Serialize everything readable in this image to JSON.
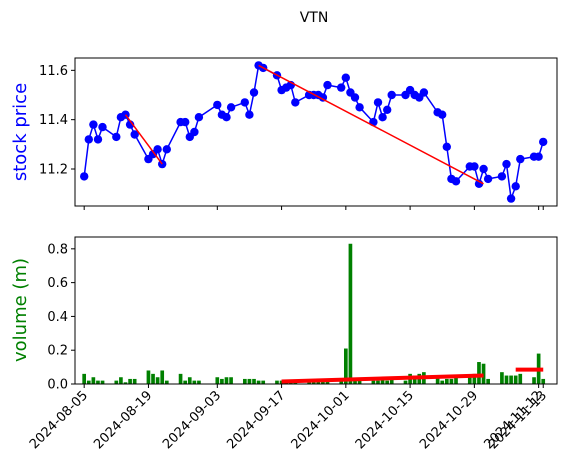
{
  "chart_data": [
    {
      "type": "line",
      "title": "VTN",
      "ylabel": "stock price",
      "ylabel_color": "#0000ff",
      "ylim": [
        11.05,
        11.65
      ],
      "yticks": [
        11.2,
        11.4,
        11.6
      ],
      "ytick_labels": [
        "11.2",
        "11.4",
        "11.6"
      ],
      "xlim": [
        "2024-08-03",
        "2024-11-16"
      ],
      "series": [
        {
          "color": "#0000ff",
          "marker": "circle",
          "x": [
            "2024-08-05",
            "2024-08-06",
            "2024-08-07",
            "2024-08-08",
            "2024-08-09",
            "2024-08-12",
            "2024-08-13",
            "2024-08-14",
            "2024-08-15",
            "2024-08-16",
            "2024-08-19",
            "2024-08-20",
            "2024-08-21",
            "2024-08-22",
            "2024-08-23",
            "2024-08-26",
            "2024-08-27",
            "2024-08-28",
            "2024-08-29",
            "2024-08-30",
            "2024-09-03",
            "2024-09-04",
            "2024-09-05",
            "2024-09-06",
            "2024-09-09",
            "2024-09-10",
            "2024-09-11",
            "2024-09-12",
            "2024-09-13",
            "2024-09-16",
            "2024-09-17",
            "2024-09-18",
            "2024-09-19",
            "2024-09-20",
            "2024-09-23",
            "2024-09-24",
            "2024-09-25",
            "2024-09-26",
            "2024-09-27",
            "2024-09-30",
            "2024-10-01",
            "2024-10-02",
            "2024-10-03",
            "2024-10-04",
            "2024-10-07",
            "2024-10-08",
            "2024-10-09",
            "2024-10-10",
            "2024-10-11",
            "2024-10-14",
            "2024-10-15",
            "2024-10-16",
            "2024-10-17",
            "2024-10-18",
            "2024-10-21",
            "2024-10-22",
            "2024-10-23",
            "2024-10-24",
            "2024-10-25",
            "2024-10-28",
            "2024-10-29",
            "2024-10-30",
            "2024-10-31",
            "2024-11-01",
            "2024-11-04",
            "2024-11-05",
            "2024-11-06",
            "2024-11-07",
            "2024-11-08",
            "2024-11-11",
            "2024-11-12",
            "2024-11-13"
          ],
          "y": [
            11.17,
            11.32,
            11.38,
            11.32,
            11.37,
            11.33,
            11.41,
            11.42,
            11.38,
            11.34,
            11.24,
            11.26,
            11.28,
            11.22,
            11.28,
            11.39,
            11.39,
            11.33,
            11.35,
            11.41,
            11.46,
            11.42,
            11.41,
            11.45,
            11.47,
            11.42,
            11.51,
            11.62,
            11.61,
            11.58,
            11.52,
            11.53,
            11.54,
            11.47,
            11.5,
            11.5,
            11.5,
            11.49,
            11.54,
            11.53,
            11.57,
            11.51,
            11.49,
            11.45,
            11.39,
            11.47,
            11.41,
            11.44,
            11.5,
            11.5,
            11.52,
            11.5,
            11.49,
            11.51,
            11.43,
            11.42,
            11.29,
            11.16,
            11.15,
            11.21,
            11.21,
            11.14,
            11.2,
            11.16,
            11.17,
            11.22,
            11.08,
            11.13,
            11.24,
            11.25,
            11.25,
            11.31
          ]
        }
      ],
      "trend_lines": [
        {
          "color": "#ff0000",
          "x": [
            "2024-08-14",
            "2024-08-22"
          ],
          "y": [
            11.42,
            11.22
          ]
        },
        {
          "color": "#ff0000",
          "x": [
            "2024-09-12",
            "2024-10-31"
          ],
          "y": [
            11.62,
            11.14
          ]
        }
      ]
    },
    {
      "type": "bar",
      "ylabel": "volume (m)",
      "ylabel_color": "#008000",
      "ylim": [
        0,
        0.87
      ],
      "yticks": [
        0.0,
        0.2,
        0.4,
        0.6,
        0.8
      ],
      "ytick_labels": [
        "0.0",
        "0.2",
        "0.4",
        "0.6",
        "0.8"
      ],
      "xlim": [
        "2024-08-03",
        "2024-11-16"
      ],
      "xticks": [
        "2024-08-05",
        "2024-08-19",
        "2024-09-03",
        "2024-09-17",
        "2024-10-01",
        "2024-10-15",
        "2024-10-29",
        "2024-11-12",
        "2024-11-13"
      ],
      "xtick_labels": [
        "2024-08-05",
        "2024-08-19",
        "2024-09-03",
        "2024-09-17",
        "2024-10-01",
        "2024-10-15",
        "2024-10-29",
        "2024-11-12",
        "2024-11-13"
      ],
      "series": [
        {
          "color": "#008000",
          "x": [
            "2024-08-05",
            "2024-08-06",
            "2024-08-07",
            "2024-08-08",
            "2024-08-09",
            "2024-08-12",
            "2024-08-13",
            "2024-08-14",
            "2024-08-15",
            "2024-08-16",
            "2024-08-19",
            "2024-08-20",
            "2024-08-21",
            "2024-08-22",
            "2024-08-23",
            "2024-08-26",
            "2024-08-27",
            "2024-08-28",
            "2024-08-29",
            "2024-08-30",
            "2024-09-03",
            "2024-09-04",
            "2024-09-05",
            "2024-09-06",
            "2024-09-09",
            "2024-09-10",
            "2024-09-11",
            "2024-09-12",
            "2024-09-13",
            "2024-09-16",
            "2024-09-17",
            "2024-09-18",
            "2024-09-19",
            "2024-09-20",
            "2024-09-23",
            "2024-09-24",
            "2024-09-25",
            "2024-09-26",
            "2024-09-27",
            "2024-09-30",
            "2024-10-01",
            "2024-10-02",
            "2024-10-03",
            "2024-10-04",
            "2024-10-07",
            "2024-10-08",
            "2024-10-09",
            "2024-10-10",
            "2024-10-11",
            "2024-10-14",
            "2024-10-15",
            "2024-10-16",
            "2024-10-17",
            "2024-10-18",
            "2024-10-21",
            "2024-10-22",
            "2024-10-23",
            "2024-10-24",
            "2024-10-25",
            "2024-10-28",
            "2024-10-29",
            "2024-10-30",
            "2024-10-31",
            "2024-11-01",
            "2024-11-04",
            "2024-11-05",
            "2024-11-06",
            "2024-11-07",
            "2024-11-08",
            "2024-11-11",
            "2024-11-12",
            "2024-11-13"
          ],
          "values": [
            0.06,
            0.02,
            0.04,
            0.02,
            0.02,
            0.02,
            0.04,
            0.01,
            0.03,
            0.03,
            0.08,
            0.06,
            0.04,
            0.08,
            0.02,
            0.06,
            0.02,
            0.04,
            0.02,
            0.02,
            0.04,
            0.03,
            0.04,
            0.04,
            0.03,
            0.03,
            0.03,
            0.02,
            0.02,
            0.02,
            0.02,
            0.02,
            0.02,
            0.02,
            0.02,
            0.02,
            0.02,
            0.03,
            0.02,
            0.02,
            0.21,
            0.83,
            0.03,
            0.02,
            0.02,
            0.02,
            0.03,
            0.02,
            0.04,
            0.02,
            0.06,
            0.05,
            0.06,
            0.07,
            0.04,
            0.02,
            0.03,
            0.03,
            0.04,
            0.04,
            0.06,
            0.13,
            0.12,
            0.03,
            0.07,
            0.05,
            0.05,
            0.05,
            0.06,
            0.04,
            0.18,
            0.03
          ]
        }
      ],
      "trend_lines": [
        {
          "color": "#ff0000",
          "x": [
            "2024-09-17",
            "2024-10-31"
          ],
          "y": [
            0.015,
            0.05
          ]
        },
        {
          "color": "#ff0000",
          "x": [
            "2024-11-07",
            "2024-11-13"
          ],
          "y": [
            0.085,
            0.085
          ]
        }
      ]
    }
  ]
}
